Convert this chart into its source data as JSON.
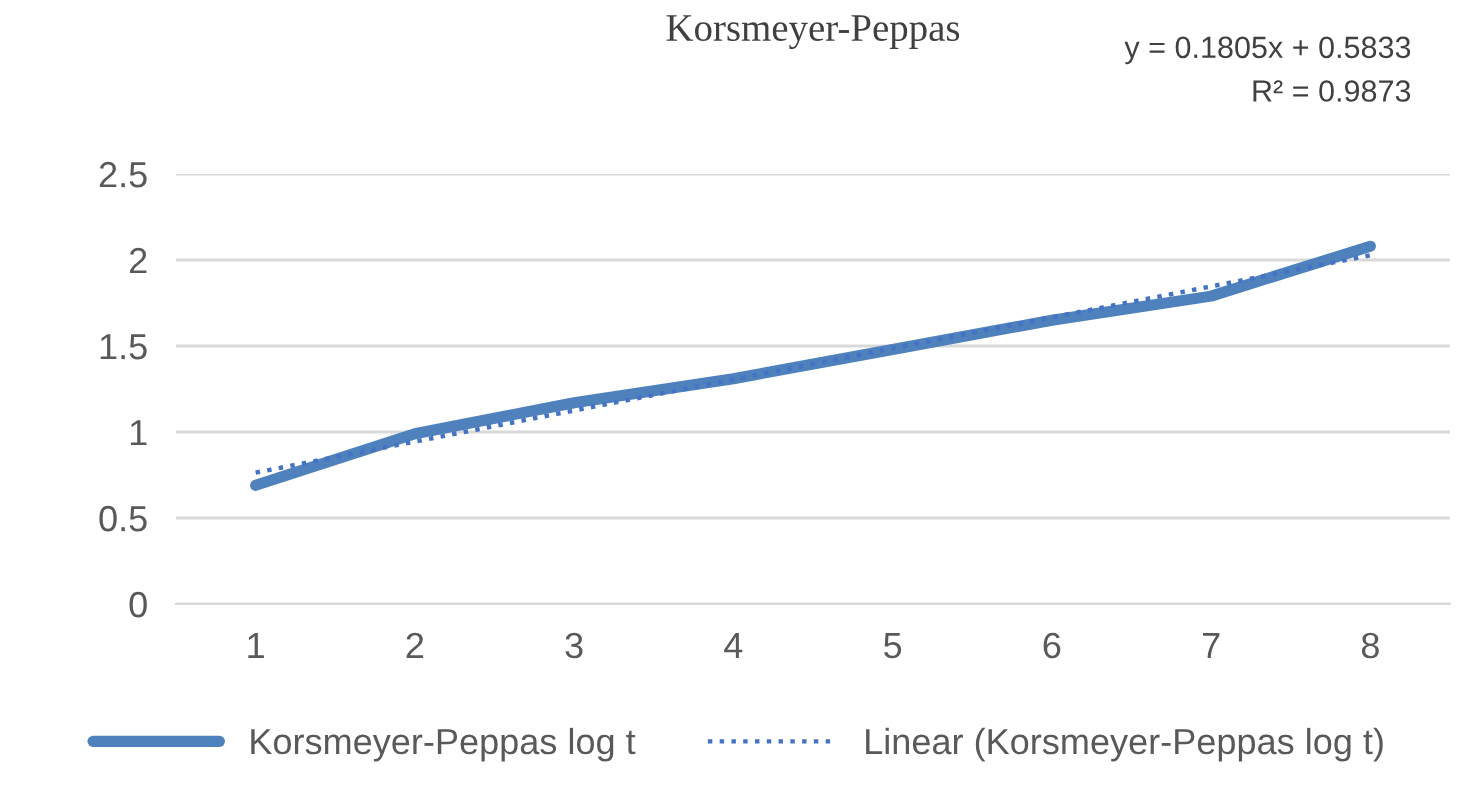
{
  "chart_data": {
    "type": "line",
    "title": "Korsmeyer-Peppas",
    "categories": [
      "1",
      "2",
      "3",
      "4",
      "5",
      "6",
      "7",
      "8"
    ],
    "series": [
      {
        "name": "Korsmeyer-Peppas log t",
        "color": "#4f81bd",
        "values": [
          0.69,
          0.99,
          1.17,
          1.31,
          1.48,
          1.65,
          1.79,
          2.08
        ],
        "line_style": "solid"
      },
      {
        "name": "Linear (Korsmeyer-Peppas log t)",
        "color": "#4472c4",
        "values": [
          0.7638,
          0.9443,
          1.1248,
          1.3053,
          1.4858,
          1.6663,
          1.8468,
          2.0273
        ],
        "line_style": "dotted"
      }
    ],
    "ylim": [
      0,
      2.5
    ],
    "yticks": [
      0,
      0.5,
      1,
      1.5,
      2,
      2.5
    ],
    "grid": "y",
    "legend": "bottom",
    "marker": "none",
    "annotations": [
      "y = 0.1805x + 0.5833",
      "R² = 0.9873"
    ]
  }
}
